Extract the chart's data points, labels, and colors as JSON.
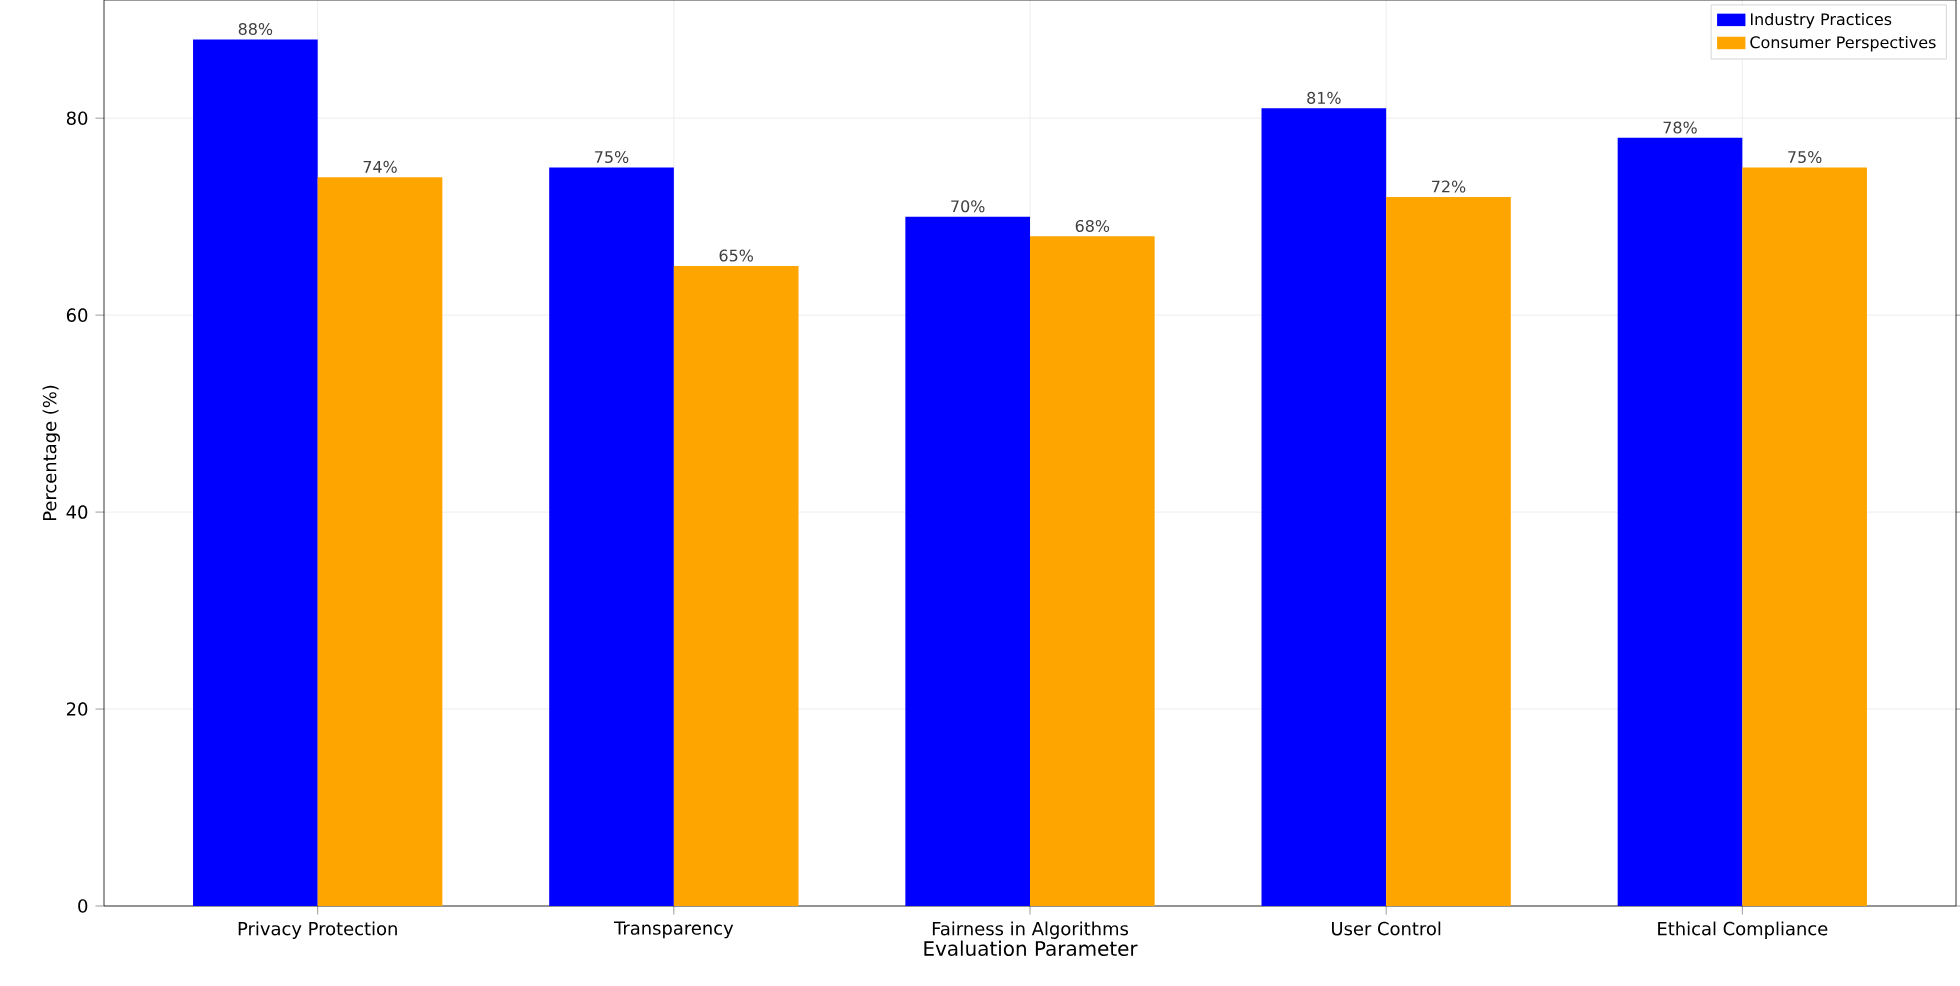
{
  "chart_data": {
    "type": "bar",
    "xlabel": "Evaluation Parameter",
    "ylabel": "Percentage (%)",
    "categories": [
      "Privacy Protection",
      "Transparency",
      "Fairness in Algorithms",
      "User Control",
      "Ethical Compliance"
    ],
    "series": [
      {
        "name": "Industry Practices",
        "color": "#0000ff",
        "values": [
          88,
          75,
          70,
          81,
          78
        ],
        "value_labels": [
          "88%",
          "75%",
          "70%",
          "81%",
          "78%"
        ]
      },
      {
        "name": "Consumer Perspectives",
        "color": "#ffa500",
        "values": [
          74,
          65,
          68,
          72,
          75
        ],
        "value_labels": [
          "74%",
          "65%",
          "68%",
          "72%",
          "75%"
        ]
      }
    ],
    "ylim": [
      0,
      92
    ],
    "yticks": [
      0,
      20,
      40,
      60,
      80
    ],
    "grid": true,
    "legend": "top right"
  }
}
